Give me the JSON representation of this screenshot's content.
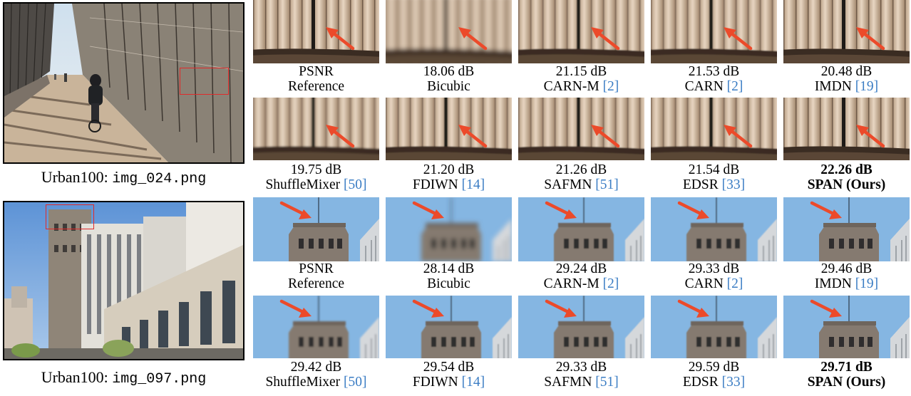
{
  "sources": [
    {
      "dataset": "Urban100:",
      "filename": "img_024.png"
    },
    {
      "dataset": "Urban100:",
      "filename": "img_097.png"
    }
  ],
  "groups": [
    {
      "rows": [
        [
          {
            "psnr": "PSNR",
            "method": "Reference",
            "ref": "",
            "best": false
          },
          {
            "psnr": "18.06 dB",
            "method": "Bicubic",
            "ref": "",
            "best": false
          },
          {
            "psnr": "21.15 dB",
            "method": "CARN-M ",
            "ref": "[2]",
            "best": false
          },
          {
            "psnr": "21.53 dB",
            "method": "CARN ",
            "ref": "[2]",
            "best": false
          },
          {
            "psnr": "20.48 dB",
            "method": "IMDN ",
            "ref": "[19]",
            "best": false
          }
        ],
        [
          {
            "psnr": "19.75 dB",
            "method": "ShuffleMixer ",
            "ref": "[50]",
            "best": false
          },
          {
            "psnr": "21.20 dB",
            "method": "FDIWN ",
            "ref": "[14]",
            "best": false
          },
          {
            "psnr": "21.26 dB",
            "method": "SAFMN ",
            "ref": "[51]",
            "best": false
          },
          {
            "psnr": "21.54 dB",
            "method": "EDSR ",
            "ref": "[33]",
            "best": false
          },
          {
            "psnr": "22.26 dB",
            "method": "SPAN (Ours)",
            "ref": "",
            "best": true
          }
        ]
      ]
    },
    {
      "rows": [
        [
          {
            "psnr": "PSNR",
            "method": "Reference",
            "ref": "",
            "best": false
          },
          {
            "psnr": "28.14 dB",
            "method": "Bicubic",
            "ref": "",
            "best": false
          },
          {
            "psnr": "29.24 dB",
            "method": "CARN-M ",
            "ref": "[2]",
            "best": false
          },
          {
            "psnr": "29.33 dB",
            "method": "CARN ",
            "ref": "[2]",
            "best": false
          },
          {
            "psnr": "29.46 dB",
            "method": "IMDN ",
            "ref": "[19]",
            "best": false
          }
        ],
        [
          {
            "psnr": "29.42 dB",
            "method": "ShuffleMixer ",
            "ref": "[50]",
            "best": false
          },
          {
            "psnr": "29.54 dB",
            "method": "FDIWN ",
            "ref": "[14]",
            "best": false
          },
          {
            "psnr": "29.33 dB",
            "method": "SAFMN ",
            "ref": "[51]",
            "best": false
          },
          {
            "psnr": "29.59 dB",
            "method": "EDSR ",
            "ref": "[33]",
            "best": false
          },
          {
            "psnr": "29.71 dB",
            "method": "SPAN (Ours)",
            "ref": "",
            "best": true
          }
        ]
      ]
    }
  ],
  "colors": {
    "roi": "#e02a2a",
    "arrow": "#ec4a2a",
    "citation": "#3b7dc4"
  }
}
